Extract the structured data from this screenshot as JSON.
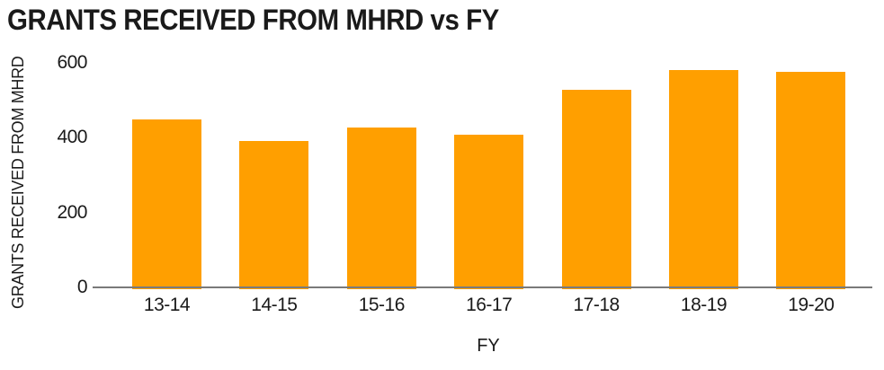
{
  "page": {
    "background_color": "#FFFFFF"
  },
  "chart_data": {
    "type": "bar",
    "title": "GRANTS RECEIVED FROM MHRD vs FY",
    "xlabel": "FY",
    "ylabel": "GRANTS RECEIVED FROM MHRD",
    "categories": [
      "13-14",
      "14-15",
      "15-16",
      "16-17",
      "17-18",
      "18-19",
      "19-20"
    ],
    "values": [
      450,
      392,
      427,
      409,
      527,
      582,
      577
    ],
    "ylim": [
      0,
      600
    ],
    "yticks": [
      0,
      200,
      400,
      600
    ],
    "grid": false,
    "legend": "none",
    "bar_color": "#FF9F00",
    "axis_color": "#7A7A7A",
    "text_color": "#1A1A1A"
  }
}
